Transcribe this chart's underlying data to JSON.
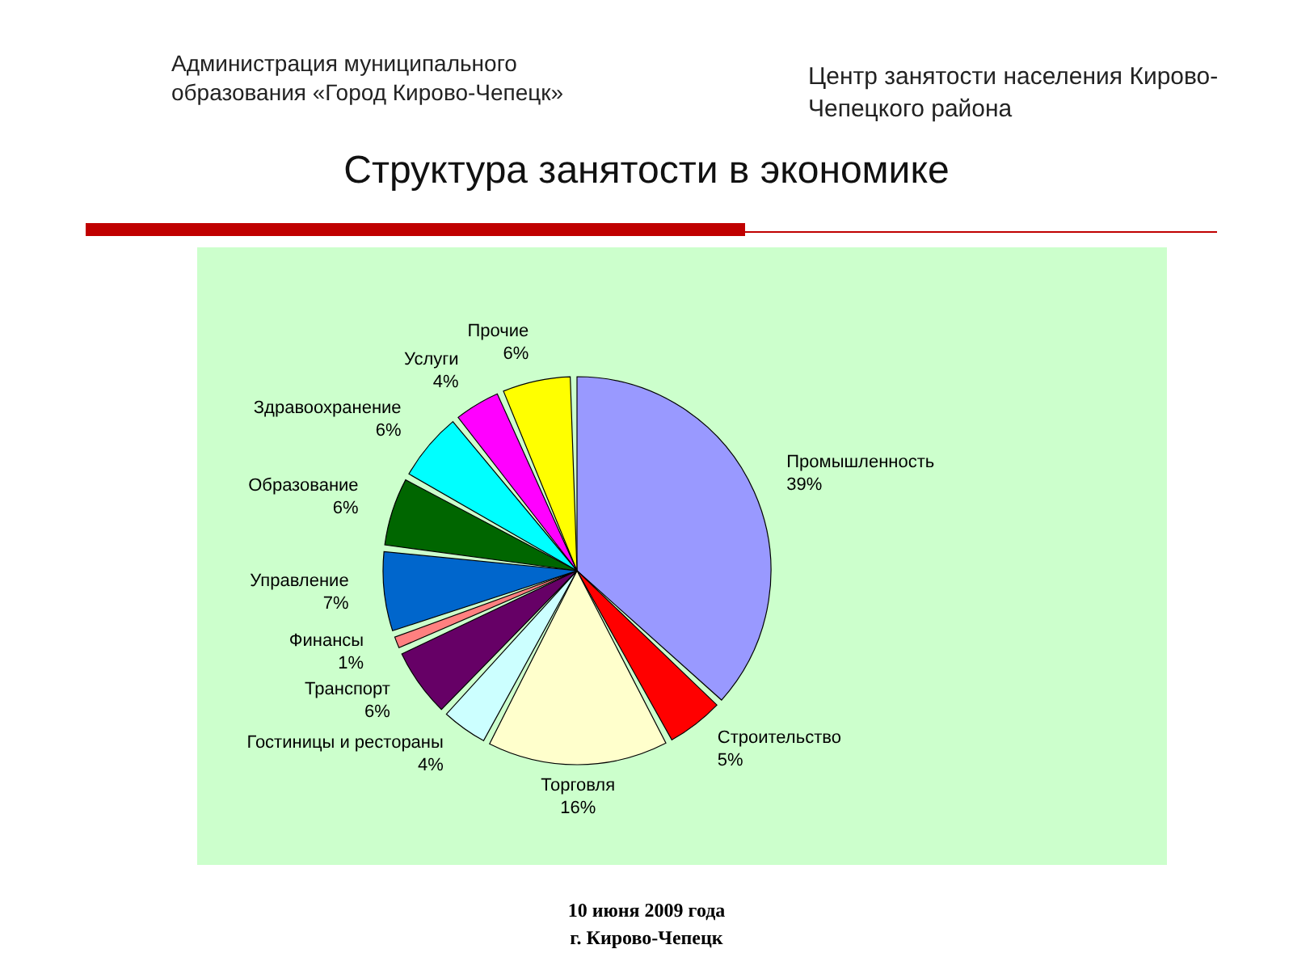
{
  "chart_data": {
    "type": "pie",
    "title": "Структура занятости в экономике",
    "categories": [
      "Промышленность",
      "Строительство",
      "Торговля",
      "Гостиницы и рестораны",
      "Транспорт",
      "Финансы",
      "Управление",
      "Образование",
      "Здравоохранение",
      "Услуги",
      "Прочие"
    ],
    "values": [
      39,
      5,
      16,
      4,
      6,
      1,
      7,
      6,
      6,
      4,
      6
    ],
    "value_labels": [
      "39%",
      "5%",
      "16%",
      "4%",
      "6%",
      "1%",
      "7%",
      "6%",
      "6%",
      "4%",
      "6%"
    ],
    "colors": [
      "#9999ff",
      "#ff0000",
      "#ffffcc",
      "#ccffff",
      "#660066",
      "#ff8080",
      "#0066cc",
      "#006600",
      "#00ffff",
      "#ff00ff",
      "#ffff00"
    ],
    "annotations": [
      "Администрация муниципального образования «Город Кирово-Чепецк»",
      "Центр занятости населения Кирово-Чепецкого района",
      "10 июня 2009 года",
      "г. Кирово-Чепецк"
    ],
    "legend": false
  }
}
